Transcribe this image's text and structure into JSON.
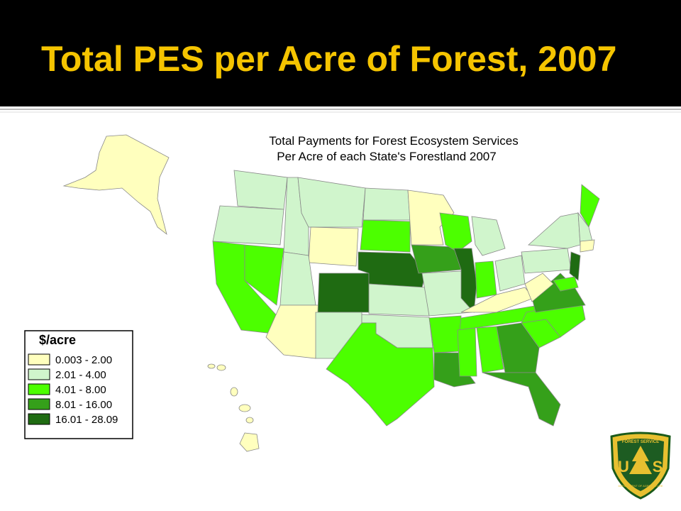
{
  "header": {
    "title": "Total PES per Acre of Forest, 2007"
  },
  "map": {
    "title_line1": "Total Payments for Forest Ecosystem Services",
    "title_line2": "Per Acre of each State's Forestland 2007"
  },
  "legend": {
    "title": "$/acre",
    "items": [
      {
        "label": "0.003 - 2.00",
        "color": "#ffffbe"
      },
      {
        "label": "2.01 - 4.00",
        "color": "#d0f5cc"
      },
      {
        "label": "4.01 - 8.00",
        "color": "#4cff00"
      },
      {
        "label": "8.01 - 16.00",
        "color": "#35a01a"
      },
      {
        "label": "16.01 - 28.09",
        "color": "#1f6b12"
      }
    ]
  },
  "logo": {
    "top": "FOREST SERVICE",
    "left": "U",
    "right": "S",
    "bottom": "DEPARTMENT OF AGRICULTURE"
  }
}
